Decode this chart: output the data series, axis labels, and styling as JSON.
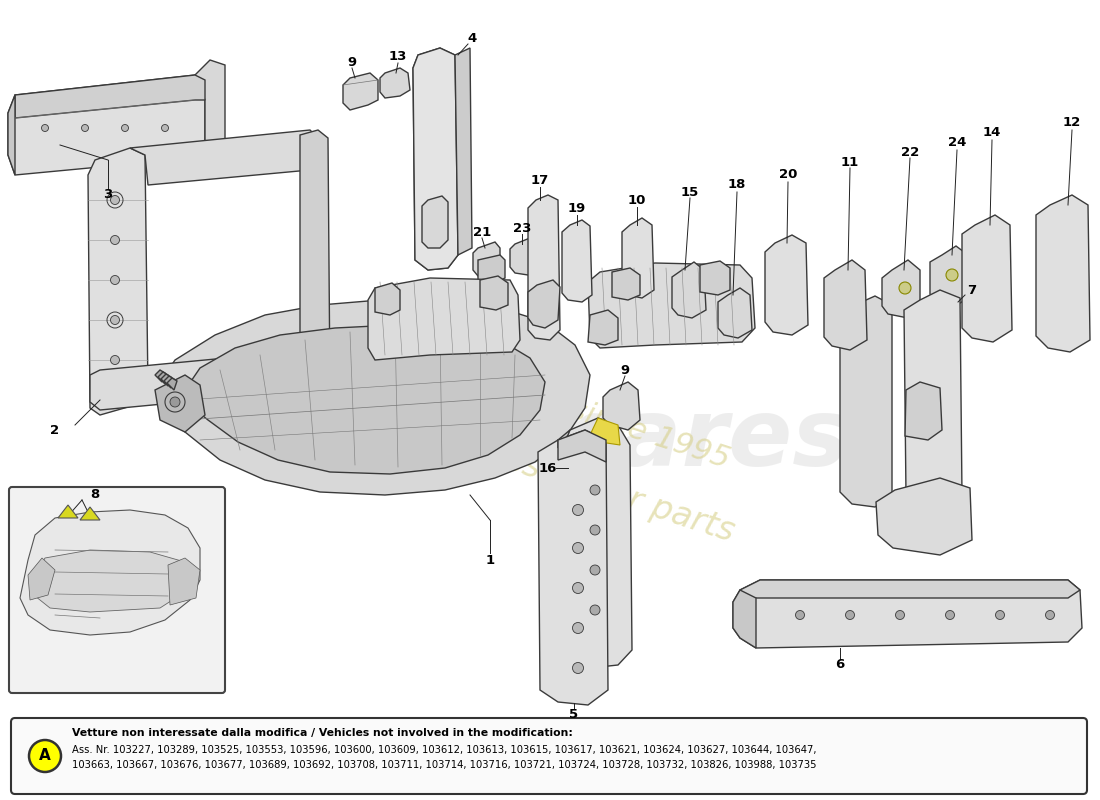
{
  "background_color": "#ffffff",
  "note_title": "Vetture non interessate dalla modifica / Vehicles not involved in the modification:",
  "note_body_line1": "Ass. Nr. 103227, 103289, 103525, 103553, 103596, 103600, 103609, 103612, 103613, 103615, 103617, 103621, 103624, 103627, 103644, 103647,",
  "note_body_line2": "103663, 103667, 103676, 103677, 103689, 103692, 103708, 103711, 103714, 103716, 103721, 103724, 103728, 103732, 103826, 103988, 103735",
  "ec": "#3a3a3a",
  "fc_part": "#e8e8e8",
  "fc_dark": "#cccccc",
  "wm_color": "#d4cc80",
  "wm_alpha": 0.55,
  "lw_part": 1.0,
  "lw_thin": 0.6
}
